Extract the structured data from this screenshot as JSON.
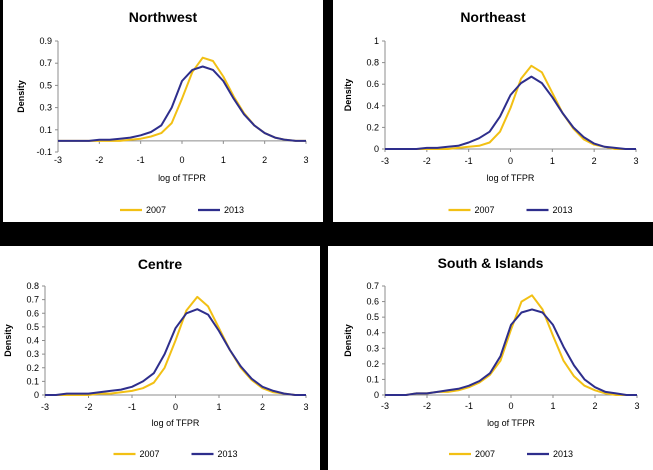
{
  "colors": {
    "series_2007": "#F2C014",
    "series_2013": "#2E2E8C"
  },
  "chart_data": [
    {
      "type": "line",
      "title": "Northwest",
      "xlabel": "log of TFPR",
      "ylabel": "Density",
      "xlim": [
        -3,
        3
      ],
      "ylim": [
        -0.1,
        0.9
      ],
      "xticks": [
        -3,
        -2,
        -1,
        0,
        1,
        2,
        3
      ],
      "yticks": [
        "-0.1",
        "0.1",
        "0.3",
        "0.5",
        "0.7",
        "0.9"
      ],
      "legend": "bottom",
      "x": [
        -3,
        -2.75,
        -2.5,
        -2.25,
        -2,
        -1.75,
        -1.5,
        -1.25,
        -1,
        -0.75,
        -0.5,
        -0.25,
        0,
        0.25,
        0.5,
        0.75,
        1,
        1.25,
        1.5,
        1.75,
        2,
        2.25,
        2.5,
        2.75,
        3
      ],
      "series": [
        {
          "name": "2007",
          "values": [
            0.0,
            0.0,
            0.0,
            0.0,
            0.0,
            0.0,
            0.0,
            0.01,
            0.02,
            0.04,
            0.07,
            0.16,
            0.38,
            0.62,
            0.75,
            0.72,
            0.58,
            0.4,
            0.25,
            0.14,
            0.07,
            0.03,
            0.01,
            0.0,
            0.0
          ]
        },
        {
          "name": "2013",
          "values": [
            0.0,
            0.0,
            0.0,
            0.0,
            0.01,
            0.01,
            0.02,
            0.03,
            0.05,
            0.08,
            0.14,
            0.3,
            0.54,
            0.64,
            0.67,
            0.64,
            0.54,
            0.38,
            0.24,
            0.14,
            0.07,
            0.03,
            0.01,
            0.0,
            0.0
          ]
        }
      ]
    },
    {
      "type": "line",
      "title": "Northeast",
      "xlabel": "log of TFPR",
      "ylabel": "Density",
      "xlim": [
        -3,
        3
      ],
      "ylim": [
        0,
        1
      ],
      "xticks": [
        -3,
        -2,
        -1,
        0,
        1,
        2,
        3
      ],
      "yticks": [
        "0",
        "0.2",
        "0.4",
        "0.6",
        "0.8",
        "1"
      ],
      "legend": "bottom",
      "x": [
        -3,
        -2.75,
        -2.5,
        -2.25,
        -2,
        -1.75,
        -1.5,
        -1.25,
        -1,
        -0.75,
        -0.5,
        -0.25,
        0,
        0.25,
        0.5,
        0.75,
        1,
        1.25,
        1.5,
        1.75,
        2,
        2.25,
        2.5,
        2.75,
        3
      ],
      "series": [
        {
          "name": "2007",
          "values": [
            0.0,
            0.0,
            0.0,
            0.0,
            0.0,
            0.0,
            0.0,
            0.01,
            0.02,
            0.03,
            0.06,
            0.16,
            0.38,
            0.65,
            0.77,
            0.71,
            0.52,
            0.33,
            0.19,
            0.09,
            0.04,
            0.02,
            0.0,
            0.0,
            0.0
          ]
        },
        {
          "name": "2013",
          "values": [
            0.0,
            0.0,
            0.0,
            0.0,
            0.01,
            0.01,
            0.02,
            0.03,
            0.06,
            0.1,
            0.16,
            0.3,
            0.5,
            0.61,
            0.67,
            0.61,
            0.48,
            0.33,
            0.2,
            0.11,
            0.05,
            0.02,
            0.01,
            0.0,
            0.0
          ]
        }
      ]
    },
    {
      "type": "line",
      "title": "Centre",
      "xlabel": "log of TFPR",
      "ylabel": "Density",
      "xlim": [
        -3,
        3
      ],
      "ylim": [
        0,
        0.8
      ],
      "xticks": [
        -3,
        -2,
        -1,
        0,
        1,
        2,
        3
      ],
      "yticks": [
        "0",
        "0.1",
        "0.2",
        "0.3",
        "0.4",
        "0.5",
        "0.6",
        "0.7",
        "0.8"
      ],
      "legend": "bottom",
      "x": [
        -3,
        -2.75,
        -2.5,
        -2.25,
        -2,
        -1.75,
        -1.5,
        -1.25,
        -1,
        -0.75,
        -0.5,
        -0.25,
        0,
        0.25,
        0.5,
        0.75,
        1,
        1.25,
        1.5,
        1.75,
        2,
        2.25,
        2.5,
        2.75,
        3
      ],
      "series": [
        {
          "name": "2007",
          "values": [
            0.0,
            0.0,
            0.0,
            0.0,
            0.0,
            0.01,
            0.01,
            0.02,
            0.03,
            0.05,
            0.09,
            0.2,
            0.4,
            0.62,
            0.72,
            0.65,
            0.49,
            0.33,
            0.2,
            0.11,
            0.05,
            0.02,
            0.01,
            0.0,
            0.0
          ]
        },
        {
          "name": "2013",
          "values": [
            0.0,
            0.0,
            0.01,
            0.01,
            0.01,
            0.02,
            0.03,
            0.04,
            0.06,
            0.1,
            0.16,
            0.3,
            0.49,
            0.6,
            0.63,
            0.59,
            0.47,
            0.33,
            0.21,
            0.12,
            0.06,
            0.03,
            0.01,
            0.0,
            0.0
          ]
        }
      ]
    },
    {
      "type": "line",
      "title": "South & Islands",
      "xlabel": "log of TFPR",
      "ylabel": "Density",
      "xlim": [
        -3,
        3
      ],
      "ylim": [
        0,
        0.7
      ],
      "xticks": [
        -3,
        -2,
        -1,
        0,
        1,
        2,
        3
      ],
      "yticks": [
        "0",
        "0.1",
        "0.2",
        "0.3",
        "0.4",
        "0.5",
        "0.6",
        "0.7"
      ],
      "legend": "bottom",
      "x": [
        -3,
        -2.75,
        -2.5,
        -2.25,
        -2,
        -1.75,
        -1.5,
        -1.25,
        -1,
        -0.75,
        -0.5,
        -0.25,
        0,
        0.25,
        0.5,
        0.75,
        1,
        1.25,
        1.5,
        1.75,
        2,
        2.25,
        2.5,
        2.75,
        3
      ],
      "series": [
        {
          "name": "2007",
          "values": [
            0.0,
            0.0,
            0.0,
            0.01,
            0.01,
            0.02,
            0.02,
            0.03,
            0.05,
            0.08,
            0.13,
            0.22,
            0.42,
            0.6,
            0.64,
            0.55,
            0.38,
            0.22,
            0.12,
            0.06,
            0.03,
            0.01,
            0.0,
            0.0,
            0.0
          ]
        },
        {
          "name": "2013",
          "values": [
            0.0,
            0.0,
            0.0,
            0.01,
            0.01,
            0.02,
            0.03,
            0.04,
            0.06,
            0.09,
            0.14,
            0.25,
            0.45,
            0.53,
            0.55,
            0.53,
            0.45,
            0.31,
            0.19,
            0.1,
            0.05,
            0.02,
            0.01,
            0.0,
            0.0
          ]
        }
      ]
    }
  ]
}
